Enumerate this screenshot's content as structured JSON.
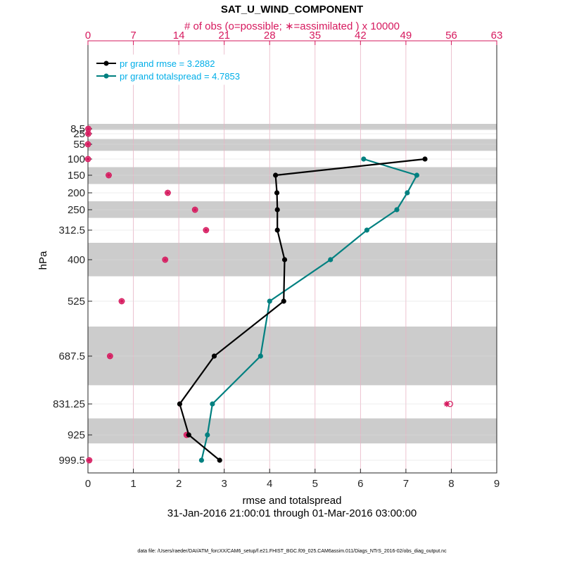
{
  "chart_data": {
    "type": "line",
    "title": "SAT_U_WIND_COMPONENT",
    "top_axis_label": "# of obs (o=possible; ∗=assimilated ) x 10000",
    "xlabel": "rmse and totalspread",
    "ylabel": "hPa",
    "date_range": "31-Jan-2016 21:00:01 through 01-Mar-2016 03:00:00",
    "footnote": "data file: /Users/raeder/DAI/ATM_forcXX/CAM6_setup/f.e21.FHIST_BGC.f09_025.CAM6assim.011/Diags_NTrS_2016-02/obs_diag_output.nc",
    "xlim": [
      0,
      9
    ],
    "x_ticks": [
      "0",
      "1",
      "2",
      "3",
      "4",
      "5",
      "6",
      "7",
      "8",
      "9"
    ],
    "top_xlim": [
      0,
      63
    ],
    "top_ticks": [
      "0",
      "7",
      "14",
      "21",
      "28",
      "35",
      "42",
      "49",
      "56",
      "63"
    ],
    "levels": [
      8.5,
      25,
      55,
      100,
      150,
      200,
      250,
      312.5,
      400,
      525,
      687.5,
      831.25,
      925,
      999.5
    ],
    "level_labels": [
      "8.5",
      "25",
      "55",
      "100",
      "150",
      "200",
      "250",
      "312.5",
      "400",
      "525",
      "687.5",
      "831.25",
      "925",
      "999.5"
    ],
    "shaded_bands": [
      [
        0,
        12
      ],
      [
        40,
        75
      ],
      [
        125,
        175
      ],
      [
        225,
        275
      ],
      [
        350,
        450
      ],
      [
        600,
        775
      ],
      [
        875,
        950
      ]
    ],
    "legend_location": "top-left",
    "series": [
      {
        "name": "pr grand rmse = 3.2882",
        "color": "#000000",
        "levels": [
          100,
          150,
          200,
          250,
          312.5,
          400,
          525,
          687.5,
          831.25,
          925,
          999.5
        ],
        "values": [
          7.42,
          4.13,
          4.16,
          4.17,
          4.17,
          4.33,
          4.31,
          2.78,
          2.02,
          2.22,
          2.9
        ]
      },
      {
        "name": "pr grand totalspread = 4.7853",
        "color": "#008080",
        "levels": [
          100,
          150,
          200,
          250,
          312.5,
          400,
          525,
          687.5,
          831.25,
          925,
          999.5
        ],
        "values": [
          6.07,
          7.24,
          7.03,
          6.8,
          6.14,
          5.34,
          4.0,
          3.8,
          2.74,
          2.63,
          2.5
        ]
      }
    ],
    "obs_counts": {
      "units": "x 10000",
      "color": "#d6195e",
      "levels": [
        8.5,
        25,
        55,
        100,
        150,
        200,
        250,
        312.5,
        400,
        525,
        687.5,
        831.25,
        925,
        999.5
      ],
      "possible": [
        0.05,
        0.05,
        0.0,
        0.0,
        3.2,
        12.3,
        16.5,
        18.2,
        11.9,
        5.2,
        3.4,
        55.8,
        15.2,
        0.2
      ],
      "assimilated": [
        0.05,
        0.05,
        0.0,
        0.0,
        3.2,
        12.3,
        16.5,
        18.2,
        11.9,
        5.2,
        3.4,
        55.3,
        15.2,
        0.2
      ]
    }
  }
}
